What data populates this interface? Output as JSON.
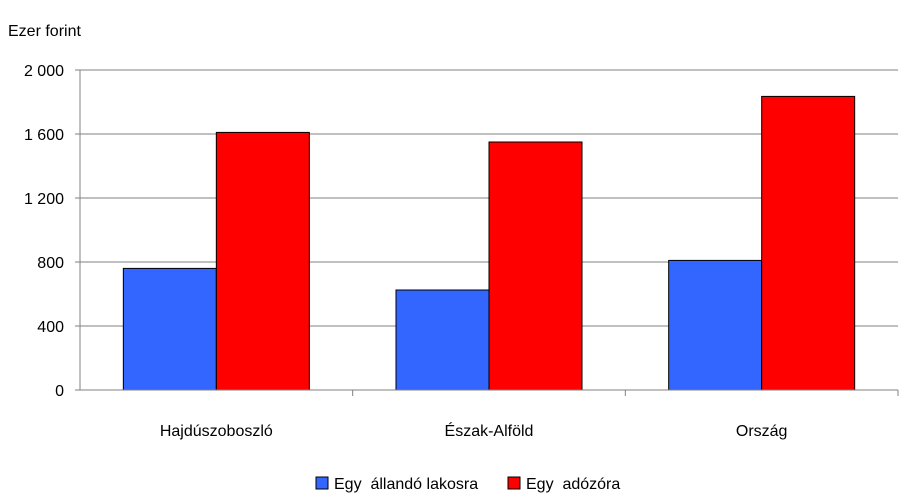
{
  "chart_data": {
    "type": "bar",
    "title": "",
    "unit_label": "Ezer forint",
    "xlabel": "",
    "ylabel": "",
    "categories": [
      "Hajdúszoboszló",
      "Észak-Alföld",
      "Ország"
    ],
    "series": [
      {
        "name": "Egy  állandó lakosra",
        "color": "#3366ff",
        "values": [
          760,
          625,
          810
        ]
      },
      {
        "name": "Egy  adózóra",
        "color": "#ff0000",
        "values": [
          1610,
          1550,
          1835
        ]
      }
    ],
    "ylim": [
      0,
      2000
    ],
    "yticks": [
      0,
      400,
      800,
      1200,
      1600,
      2000
    ],
    "ytick_labels": [
      "0",
      "400",
      "800",
      "1 200",
      "1 600",
      "2 000"
    ],
    "grid": true,
    "gridline_color": "#808080",
    "legend_position": "bottom"
  }
}
